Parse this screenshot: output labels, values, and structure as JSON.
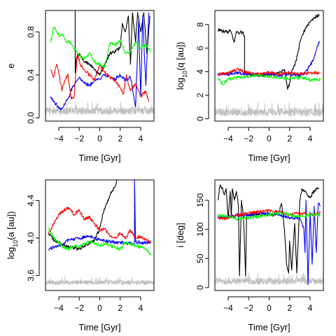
{
  "chart_data": [
    {
      "type": "line",
      "xlabel": "Time [Gyr]",
      "ylabel": "e",
      "ylabel_parts": [
        "e"
      ],
      "xlim": [
        -5.3,
        5.3
      ],
      "ylim": [
        -0.03,
        1.0
      ],
      "xticks": [
        -4,
        -2,
        0,
        2,
        4
      ],
      "yticks": [
        0.0,
        0.4,
        0.8
      ],
      "yticklabels": [
        "0.0",
        "0.4",
        "0.8"
      ],
      "series": [
        {
          "color": "#000000",
          "x": [
            -2.4,
            -2.4,
            -2.3,
            -2.0,
            -1.5,
            -1.0,
            -0.5,
            0.0,
            0.5,
            1.0,
            1.5,
            2.0,
            2.2,
            2.5,
            2.8,
            3.0,
            3.2,
            3.5,
            3.7,
            4.0,
            4.3,
            4.6,
            4.9
          ],
          "y": [
            1.0,
            0.42,
            0.55,
            0.6,
            0.52,
            0.5,
            0.45,
            0.4,
            0.5,
            0.6,
            0.62,
            0.65,
            0.88,
            0.8,
            0.95,
            0.5,
            0.98,
            0.7,
            0.98,
            0.8,
            0.98,
            0.6,
            0.95
          ]
        },
        {
          "color": "#0000ff",
          "x": [
            -4.8,
            -4.5,
            -4.2,
            -3.9,
            -3.6,
            -3.3,
            -3.0,
            -2.7,
            -2.4,
            -2.0,
            -1.5,
            -1.0,
            -0.5,
            0.0,
            0.5,
            1.0,
            1.5,
            2.0,
            2.5,
            3.0,
            3.5,
            3.8,
            4.0,
            4.2,
            4.5,
            4.8
          ],
          "y": [
            0.2,
            0.15,
            0.12,
            0.08,
            0.1,
            0.15,
            0.2,
            0.28,
            0.32,
            0.38,
            0.33,
            0.3,
            0.35,
            0.36,
            0.4,
            0.38,
            0.36,
            0.4,
            0.35,
            0.38,
            0.1,
            0.9,
            0.2,
            0.95,
            0.3,
            0.98
          ]
        },
        {
          "color": "#ff0000",
          "x": [
            -4.8,
            -4.5,
            -4.2,
            -4.0,
            -3.7,
            -3.4,
            -3.1,
            -2.8,
            -2.5,
            -2.2,
            -1.9,
            -1.5,
            -1.0,
            -0.5,
            0.0,
            0.5,
            1.0,
            1.5,
            2.0,
            2.3,
            2.6,
            3.0,
            3.5,
            4.0,
            4.5,
            4.8
          ],
          "y": [
            0.45,
            0.38,
            0.5,
            0.42,
            0.25,
            0.35,
            0.4,
            0.18,
            0.2,
            0.6,
            0.5,
            0.45,
            0.4,
            0.35,
            0.5,
            0.42,
            0.38,
            0.35,
            0.28,
            0.22,
            0.4,
            0.25,
            0.32,
            0.2,
            0.25,
            0.15
          ]
        },
        {
          "color": "#00ff00",
          "x": [
            -4.8,
            -4.5,
            -4.2,
            -3.9,
            -3.6,
            -3.3,
            -3.0,
            -2.5,
            -2.0,
            -1.5,
            -1.0,
            -0.5,
            0.0,
            0.5,
            1.0,
            1.5,
            2.0,
            2.5,
            3.0,
            3.5,
            4.0,
            4.5,
            5.0
          ],
          "y": [
            0.7,
            0.85,
            0.8,
            0.76,
            0.78,
            0.7,
            0.72,
            0.65,
            0.58,
            0.55,
            0.6,
            0.52,
            0.5,
            0.48,
            0.7,
            0.68,
            0.72,
            0.6,
            0.62,
            0.7,
            0.65,
            0.68,
            0.62
          ]
        }
      ],
      "noise": {
        "color": "#bebebe",
        "base": 0.03,
        "amplitude": 0.07
      }
    },
    {
      "type": "line",
      "xlabel": "Time [Gyr]",
      "ylabel": "log10(q [au])",
      "ylabel_parts": [
        "log",
        "10",
        "(q [au])"
      ],
      "xlim": [
        -5.3,
        5.3
      ],
      "ylim": [
        -0.2,
        9.2
      ],
      "xticks": [
        -4,
        -2,
        0,
        2,
        4
      ],
      "yticks": [
        0,
        2,
        4,
        6,
        8
      ],
      "yticklabels": [
        "0",
        "2",
        "4",
        "6",
        "8"
      ],
      "series": [
        {
          "color": "#000000",
          "x": [
            -5.0,
            -4.8,
            -4.5,
            -4.2,
            -4.0,
            -3.8,
            -3.6,
            -3.4,
            -3.2,
            -3.0,
            -2.8,
            -2.6,
            -2.5,
            -2.4,
            -2.4,
            -2.0,
            -1.0,
            0.0,
            1.0,
            1.5,
            1.8,
            2.0,
            2.2,
            2.5,
            2.8,
            3.0,
            3.3,
            3.6,
            4.0,
            4.3,
            4.6,
            4.9
          ],
          "y": [
            7.5,
            7.6,
            7.4,
            7.5,
            7.3,
            7.5,
            7.1,
            6.5,
            7.4,
            7.3,
            7.4,
            7.3,
            7.2,
            7.0,
            3.9,
            3.8,
            3.7,
            3.8,
            3.9,
            4.2,
            2.5,
            3.0,
            4.0,
            4.5,
            5.5,
            6.5,
            7.2,
            7.8,
            8.2,
            8.5,
            8.7,
            8.8
          ]
        },
        {
          "color": "#0000ff",
          "x": [
            -5.0,
            -4.0,
            -3.0,
            -2.0,
            -1.0,
            0.0,
            1.0,
            2.0,
            3.0,
            3.5,
            4.0,
            4.3,
            4.6,
            4.9
          ],
          "y": [
            3.8,
            3.8,
            3.9,
            3.8,
            3.7,
            3.8,
            3.7,
            3.8,
            3.7,
            3.9,
            4.5,
            5.0,
            5.8,
            6.6
          ]
        },
        {
          "color": "#ff0000",
          "x": [
            -5.0,
            -4.0,
            -3.0,
            -2.5,
            -2.0,
            -1.0,
            0.0,
            1.0,
            2.0,
            3.0,
            4.0,
            5.0
          ],
          "y": [
            3.8,
            3.9,
            4.2,
            4.0,
            3.9,
            3.8,
            3.9,
            3.8,
            3.9,
            3.8,
            3.9,
            3.9
          ]
        },
        {
          "color": "#00ff00",
          "x": [
            -5.0,
            -4.5,
            -4.0,
            -3.0,
            -2.0,
            -1.0,
            0.0,
            1.0,
            2.0,
            3.0,
            4.0,
            5.0
          ],
          "y": [
            3.5,
            2.9,
            3.4,
            3.5,
            3.6,
            3.7,
            3.6,
            3.5,
            3.4,
            3.5,
            3.3,
            3.3
          ]
        }
      ],
      "noise": {
        "color": "#bebebe",
        "base": 0.2,
        "amplitude": 0.7
      }
    },
    {
      "type": "line",
      "xlabel": "Time [Gyr]",
      "ylabel": "log10(a [au])",
      "ylabel_parts": [
        "log",
        "10",
        "(a [au])"
      ],
      "xlim": [
        -5.3,
        5.3
      ],
      "ylim": [
        3.44,
        4.62
      ],
      "xticks": [
        -4,
        -2,
        0,
        2,
        4
      ],
      "yticks": [
        3.6,
        4.0,
        4.4
      ],
      "yticklabels": [
        "3.6",
        "4.0",
        "4.4"
      ],
      "series": [
        {
          "color": "#000000",
          "x": [
            -5.0,
            -4.5,
            -4.0,
            -3.5,
            -3.0,
            -2.5,
            -2.0,
            -1.5,
            -1.0,
            -0.5,
            0.0,
            0.3,
            0.6,
            0.9,
            1.2,
            1.5,
            1.7
          ],
          "y": [
            4.05,
            3.98,
            3.95,
            3.92,
            3.9,
            3.9,
            3.88,
            3.92,
            3.95,
            3.98,
            4.1,
            4.25,
            4.35,
            4.42,
            4.5,
            4.55,
            4.62
          ]
        },
        {
          "color": "#0000ff",
          "x": [
            -5.0,
            -4.0,
            -3.0,
            -2.0,
            -1.0,
            0.0,
            1.0,
            2.0,
            3.0,
            3.4,
            3.4,
            3.5,
            4.0,
            5.0
          ],
          "y": [
            3.88,
            3.92,
            3.98,
            4.0,
            4.02,
            3.98,
            3.96,
            3.95,
            3.94,
            3.95,
            4.62,
            3.96,
            3.95,
            3.95
          ]
        },
        {
          "color": "#ff0000",
          "x": [
            -5.0,
            -4.5,
            -4.0,
            -3.5,
            -3.0,
            -2.5,
            -2.0,
            -1.5,
            -1.0,
            -0.5,
            0.0,
            0.5,
            1.0,
            1.5,
            2.0,
            2.5,
            3.0,
            3.5,
            4.0,
            4.5,
            5.0
          ],
          "y": [
            4.05,
            4.15,
            4.25,
            4.3,
            4.32,
            4.25,
            4.3,
            4.2,
            4.22,
            4.15,
            4.08,
            4.1,
            4.02,
            4.0,
            4.05,
            4.0,
            4.08,
            4.0,
            4.02,
            3.98,
            3.95
          ]
        },
        {
          "color": "#00ff00",
          "x": [
            -5.0,
            -4.5,
            -4.0,
            -3.5,
            -3.0,
            -2.5,
            -2.0,
            -1.5,
            -1.0,
            -0.5,
            0.0,
            0.5,
            1.0,
            1.5,
            2.0,
            2.5,
            3.0,
            3.5,
            4.0,
            4.5,
            5.0
          ],
          "y": [
            4.1,
            4.0,
            3.95,
            3.9,
            3.88,
            3.92,
            3.9,
            3.94,
            3.97,
            3.94,
            3.92,
            3.94,
            3.92,
            3.9,
            3.88,
            3.95,
            3.94,
            3.92,
            3.9,
            3.88,
            3.83
          ]
        }
      ],
      "noise": {
        "color": "#bebebe",
        "base": 3.5,
        "amplitude": 0.05
      }
    },
    {
      "type": "line",
      "xlabel": "Time [Gyr]",
      "ylabel": "i [deg]",
      "ylabel_parts": [
        "i [deg]"
      ],
      "xlim": [
        -5.3,
        5.3
      ],
      "ylim": [
        -5,
        185
      ],
      "xticks": [
        -4,
        -2,
        0,
        2,
        4
      ],
      "yticks": [
        0,
        50,
        100,
        150
      ],
      "yticklabels": [
        "0",
        "50",
        "100",
        "150"
      ],
      "series": [
        {
          "color": "#000000",
          "x": [
            -5.0,
            -4.8,
            -4.6,
            -4.4,
            -4.2,
            -4.0,
            -3.8,
            -3.7,
            -3.6,
            -3.4,
            -3.2,
            -3.0,
            -2.9,
            -2.7,
            -2.5,
            -2.3,
            -2.2,
            -1.8,
            -1.0,
            0.0,
            0.5,
            1.0,
            1.2,
            1.5,
            1.7,
            1.9,
            2.0,
            2.2,
            2.5,
            2.7,
            3.0,
            3.2,
            3.5,
            4.0,
            4.5,
            4.9
          ],
          "y": [
            150,
            175,
            172,
            160,
            170,
            120,
            165,
            120,
            170,
            150,
            165,
            140,
            20,
            150,
            120,
            20,
            125,
            125,
            125,
            125,
            125,
            130,
            145,
            100,
            40,
            25,
            80,
            30,
            110,
            25,
            150,
            170,
            165,
            155,
            168,
            170
          ]
        },
        {
          "color": "#0000ff",
          "x": [
            -5.0,
            -4.0,
            -3.0,
            -2.0,
            -1.0,
            0.0,
            1.0,
            2.0,
            3.0,
            3.4,
            3.5,
            3.6,
            3.8,
            4.0,
            4.2,
            4.4,
            4.6,
            4.8,
            5.0
          ],
          "y": [
            120,
            122,
            125,
            125,
            128,
            127,
            125,
            120,
            120,
            100,
            60,
            150,
            5,
            130,
            40,
            140,
            60,
            145,
            140
          ]
        },
        {
          "color": "#ff0000",
          "x": [
            -5.0,
            -4.0,
            -3.0,
            -2.0,
            -1.0,
            0.0,
            1.0,
            2.0,
            3.0,
            4.0,
            5.0
          ],
          "y": [
            118,
            120,
            125,
            128,
            130,
            132,
            130,
            125,
            128,
            125,
            128
          ]
        },
        {
          "color": "#00ff00",
          "x": [
            -5.0,
            -4.0,
            -3.0,
            -2.0,
            -1.0,
            0.0,
            1.0,
            2.0,
            3.0,
            4.0,
            5.0
          ],
          "y": [
            125,
            122,
            118,
            120,
            122,
            125,
            128,
            125,
            122,
            125,
            125
          ]
        }
      ],
      "noise": {
        "color": "#bebebe",
        "base": 5,
        "amplitude": 12
      }
    }
  ]
}
